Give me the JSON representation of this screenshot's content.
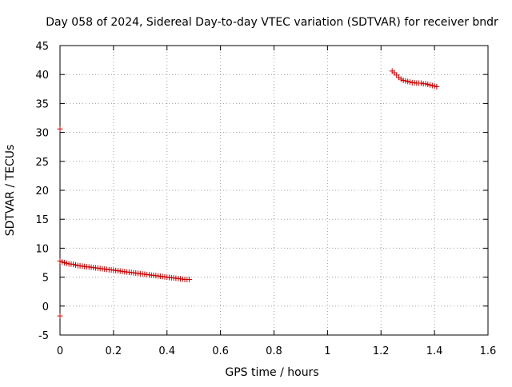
{
  "chart_data": {
    "type": "scatter",
    "title": "Day 058 of 2024, Sidereal Day-to-day VTEC variation (SDTVAR) for receiver bndr",
    "xlabel": "GPS time / hours",
    "ylabel": "SDTVAR / TECUs",
    "xlim": [
      0,
      1.6
    ],
    "ylim": [
      -5,
      45
    ],
    "x_ticks": [
      0,
      0.2,
      0.4,
      0.6,
      0.8,
      1,
      1.2,
      1.4,
      1.6
    ],
    "x_tick_labels": [
      "0",
      "0.2",
      "0.4",
      "0.6",
      "0.8",
      "1",
      "1.2",
      "1.4",
      "1.6"
    ],
    "y_ticks": [
      -5,
      0,
      5,
      10,
      15,
      20,
      25,
      30,
      35,
      40,
      45
    ],
    "y_tick_labels": [
      "-5",
      "0",
      "5",
      "10",
      "15",
      "20",
      "25",
      "30",
      "35",
      "40",
      "45"
    ],
    "grid": true,
    "marker": "plus",
    "colors": {
      "series": "#cc0000",
      "grid": "#a0a0a0",
      "axis": "#000000"
    },
    "series": [
      {
        "name": "SDTVAR",
        "x": [
          0,
          0,
          0,
          0.0083,
          0.0167,
          0.025,
          0.0333,
          0.0417,
          0.05,
          0.0583,
          0.0667,
          0.075,
          0.0833,
          0.0917,
          0.1,
          0.1083,
          0.1167,
          0.125,
          0.1333,
          0.1417,
          0.15,
          0.1583,
          0.1667,
          0.175,
          0.1833,
          0.1917,
          0.2,
          0.2083,
          0.2167,
          0.225,
          0.2333,
          0.2417,
          0.25,
          0.2583,
          0.2667,
          0.275,
          0.2833,
          0.2917,
          0.3,
          0.3083,
          0.3167,
          0.325,
          0.3333,
          0.3417,
          0.35,
          0.3583,
          0.3667,
          0.375,
          0.3833,
          0.3917,
          0.4,
          0.4083,
          0.4167,
          0.425,
          0.4333,
          0.4417,
          0.45,
          0.4583,
          0.4667,
          0.475,
          0.4833,
          1.2417,
          1.25,
          1.2583,
          1.2667,
          1.275,
          1.2833,
          1.2917,
          1.3,
          1.3083,
          1.3167,
          1.325,
          1.3333,
          1.3417,
          1.35,
          1.3583,
          1.3667,
          1.375,
          1.3833,
          1.3917,
          1.4,
          1.4083
        ],
        "y": [
          30.6,
          -1.7,
          7.8,
          7.6,
          7.5,
          7.4,
          7.3,
          7.25,
          7.2,
          7.1,
          7.0,
          6.95,
          6.9,
          6.85,
          6.8,
          6.75,
          6.7,
          6.65,
          6.6,
          6.55,
          6.5,
          6.45,
          6.4,
          6.35,
          6.3,
          6.25,
          6.2,
          6.15,
          6.1,
          6.05,
          6.0,
          5.95,
          5.9,
          5.85,
          5.8,
          5.75,
          5.7,
          5.65,
          5.6,
          5.55,
          5.5,
          5.45,
          5.4,
          5.35,
          5.3,
          5.25,
          5.2,
          5.15,
          5.1,
          5.05,
          5.0,
          4.95,
          4.9,
          4.85,
          4.8,
          4.75,
          4.7,
          4.65,
          4.6,
          4.6,
          4.6,
          40.6,
          40.3,
          39.9,
          39.5,
          39.2,
          39.0,
          38.9,
          38.8,
          38.7,
          38.6,
          38.6,
          38.5,
          38.5,
          38.5,
          38.4,
          38.4,
          38.3,
          38.2,
          38.1,
          38.0,
          37.9
        ]
      }
    ]
  }
}
